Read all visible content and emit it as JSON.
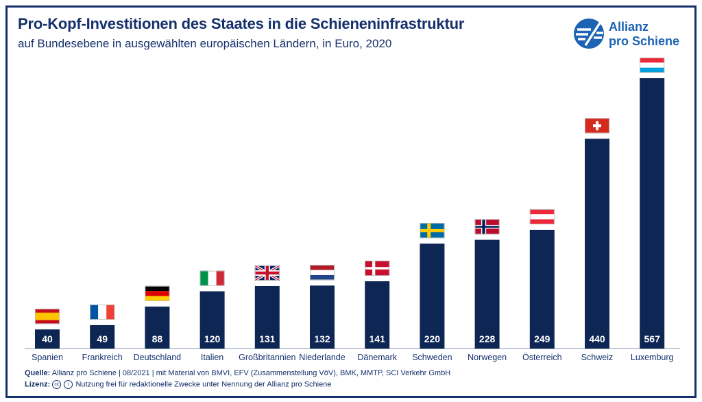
{
  "title": "Pro-Kopf-Investitionen des Staates in die Schieneninfrastruktur",
  "subtitle": "auf Bundesebene in ausgewählten europäischen Ländern, in Euro, 2020",
  "logo": {
    "line1": "Allianz",
    "line2": "pro Schiene"
  },
  "footer": {
    "source_label": "Quelle:",
    "source_text": "Allianz pro Schiene | 08/2021 | mit Material von BMVI, EFV (Zusammenstellung VöV), BMK, MMTP, SCI Verkehr GmbH",
    "license_label": "Lizenz:",
    "license_cc": "cc",
    "license_by": "i",
    "license_text": "Nutzung frei für redaktionelle Zwecke unter Nennung der Allianz pro Schiene"
  },
  "colors": {
    "bar": "#0e2653",
    "title": "#15306b",
    "brand": "#1d63b3",
    "frame": "#15306b"
  },
  "chart_data": {
    "type": "bar",
    "categories": [
      "Spanien",
      "Frankreich",
      "Deutschland",
      "Italien",
      "Großbritannien",
      "Niederlande",
      "Dänemark",
      "Schweden",
      "Norwegen",
      "Österreich",
      "Schweiz",
      "Luxemburg"
    ],
    "values": [
      40,
      49,
      88,
      120,
      131,
      132,
      141,
      220,
      228,
      249,
      440,
      567
    ],
    "flags": [
      "spain",
      "france",
      "germany",
      "italy",
      "uk",
      "netherlands",
      "denmark",
      "sweden",
      "norway",
      "austria",
      "switzerland",
      "luxembourg"
    ],
    "ylim": [
      0,
      567
    ]
  }
}
